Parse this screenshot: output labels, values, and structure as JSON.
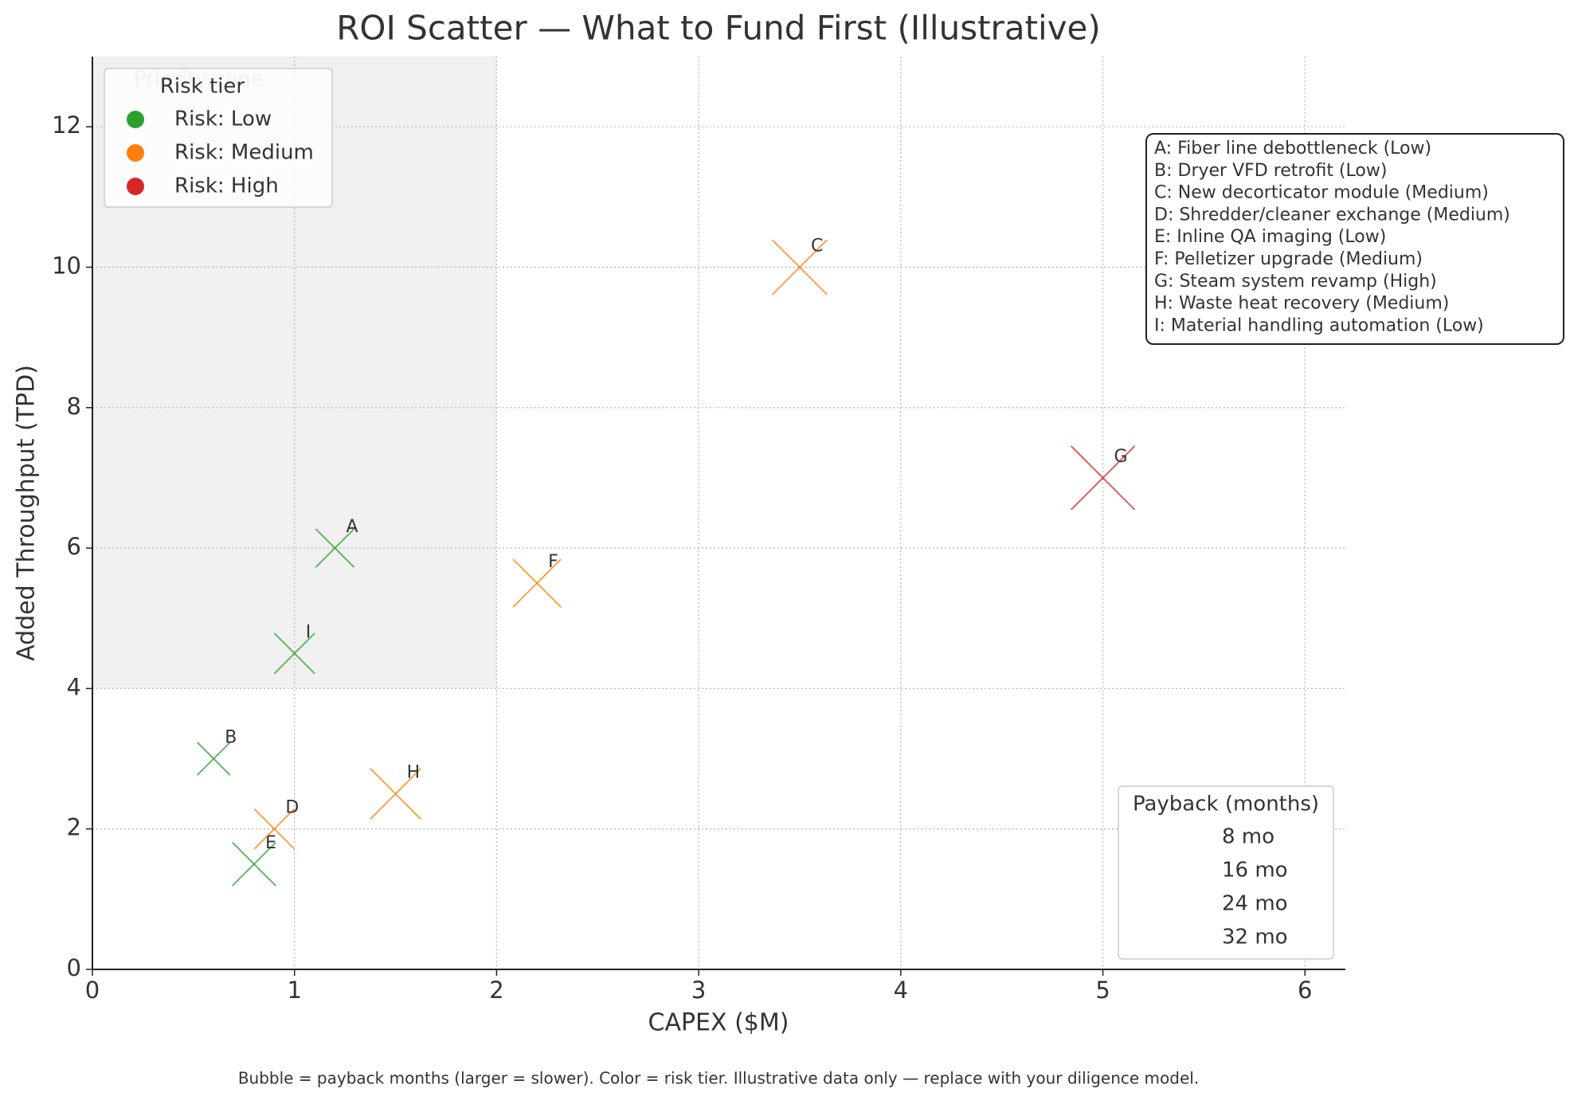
{
  "chart_data": {
    "type": "scatter",
    "title": "ROI Scatter — What to Fund First (Illustrative)",
    "x_label": "CAPEX ($M)",
    "y_label": "Added Throughput (TPD)",
    "xlim": [
      0,
      6.2
    ],
    "ylim": [
      0,
      13
    ],
    "xticks": [
      0,
      1,
      2,
      3,
      4,
      5,
      6
    ],
    "yticks": [
      0,
      2,
      4,
      6,
      8,
      10,
      12
    ],
    "grid": true,
    "legend_title": "Risk tier",
    "legend_position": "upper left",
    "priority_zone": {
      "label": "Priority zone",
      "xlim": [
        0,
        2
      ],
      "ylim": [
        4,
        13
      ],
      "color": "#f0f0f0"
    },
    "series": [
      {
        "name": "Risk: Low",
        "color": "#2ca02c",
        "labels": [
          "A",
          "B",
          "E",
          "I"
        ],
        "x": [
          1.2,
          0.6,
          0.8,
          1.0
        ],
        "values": [
          6,
          3,
          1.5,
          4.5
        ],
        "sizes": [
          11,
          8,
          14,
          12
        ]
      },
      {
        "name": "Risk: Medium",
        "color": "#ff7f0e",
        "labels": [
          "C",
          "D",
          "F",
          "H"
        ],
        "x": [
          3.5,
          0.9,
          2.2,
          1.5
        ],
        "values": [
          10,
          2,
          5.5,
          2.5
        ],
        "sizes": [
          22,
          12,
          17,
          19
        ]
      },
      {
        "name": "Risk: High",
        "color": "#d62728",
        "labels": [
          "G"
        ],
        "x": [
          5.0
        ],
        "values": [
          7
        ],
        "sizes": [
          30
        ]
      }
    ],
    "size_legend": {
      "title": "Payback (months)",
      "position": "lower right",
      "items": [
        {
          "value": 8,
          "label": "8 mo"
        },
        {
          "value": 16,
          "label": "16 mo"
        },
        {
          "value": 24,
          "label": "24 mo"
        },
        {
          "value": 32,
          "label": "32 mo"
        }
      ]
    },
    "annotation": [
      "A: Fiber line debottleneck (Low)",
      "B: Dryer VFD retrofit (Low)",
      "C: New decorticator module (Medium)",
      "D: Shredder/cleaner exchange (Medium)",
      "E: Inline QA imaging (Low)",
      "F: Pelletizer upgrade (Medium)",
      "G: Steam system revamp (High)",
      "H: Waste heat recovery (Medium)",
      "I: Material handling automation (Low)"
    ],
    "footnote": "Bubble = payback months (larger = slower). Color = risk tier. Illustrative data only — replace with your diligence model."
  }
}
